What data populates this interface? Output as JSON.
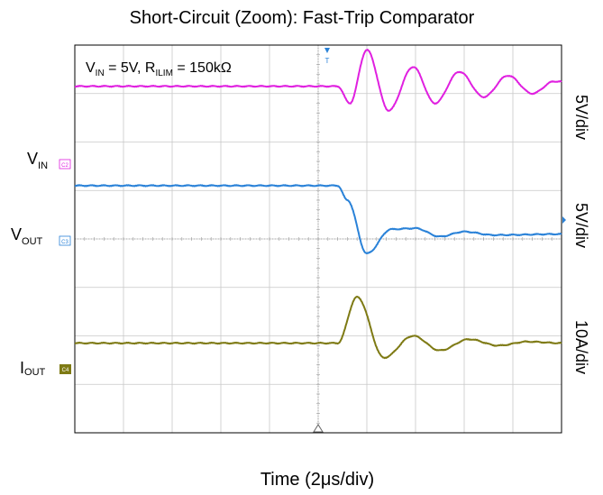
{
  "chart_data": {
    "type": "line",
    "title": "Short-Circuit (Zoom): Fast-Trip Comparator",
    "conditions": {
      "vin_sym": "V",
      "vin_sub": "IN",
      "vin_val": " = 5V, ",
      "rilim_sym": "R",
      "rilim_sub": "ILIM",
      "rilim_val": " = 150kΩ"
    },
    "xlabel": "Time (2μs/div)",
    "grid": true,
    "divisions": {
      "x": 10,
      "y": 8
    },
    "trigger_time_div": 5.4,
    "channels": [
      {
        "id": "vin",
        "label_main": "V",
        "label_sub": "IN",
        "marker_text": "C2",
        "scale": "5V/div",
        "color": "#e020e0",
        "baseline_div": 7.15,
        "events": [
          {
            "t": 5.4,
            "value": 0.0
          },
          {
            "t": 5.65,
            "value": -0.35
          },
          {
            "t": 6.0,
            "value": 0.75
          },
          {
            "t": 6.45,
            "value": -0.5
          },
          {
            "t": 6.95,
            "value": 0.4
          },
          {
            "t": 7.4,
            "value": -0.35
          },
          {
            "t": 7.9,
            "value": 0.3
          },
          {
            "t": 8.4,
            "value": -0.22
          },
          {
            "t": 8.9,
            "value": 0.22
          },
          {
            "t": 9.4,
            "value": -0.15
          },
          {
            "t": 9.85,
            "value": 0.1
          }
        ]
      },
      {
        "id": "vout",
        "label_main": "V",
        "label_sub": "OUT",
        "marker_text": "C3",
        "scale": "5V/div",
        "color": "#2a82d8",
        "baseline_div": 5.1,
        "events": [
          {
            "t": 5.4,
            "value": 0.0
          },
          {
            "t": 5.6,
            "value": -0.3
          },
          {
            "t": 6.0,
            "value": -1.4
          },
          {
            "t": 6.5,
            "value": -0.9
          },
          {
            "t": 7.0,
            "value": -0.88
          },
          {
            "t": 7.5,
            "value": -1.05
          },
          {
            "t": 8.0,
            "value": -0.95
          },
          {
            "t": 8.6,
            "value": -1.02
          },
          {
            "t": 10.0,
            "value": -1.0
          }
        ]
      },
      {
        "id": "iout",
        "label_main": "I",
        "label_sub": "OUT",
        "marker_text": "C4",
        "scale": "10A/div",
        "color": "#7e7a14",
        "baseline_div": 1.85,
        "events": [
          {
            "t": 5.4,
            "value": 0.0
          },
          {
            "t": 5.8,
            "value": 0.95
          },
          {
            "t": 6.35,
            "value": -0.3
          },
          {
            "t": 6.95,
            "value": 0.15
          },
          {
            "t": 7.5,
            "value": -0.15
          },
          {
            "t": 8.1,
            "value": 0.08
          },
          {
            "t": 8.7,
            "value": -0.05
          },
          {
            "t": 9.3,
            "value": 0.03
          },
          {
            "t": 10.0,
            "value": 0.0
          }
        ]
      }
    ]
  }
}
